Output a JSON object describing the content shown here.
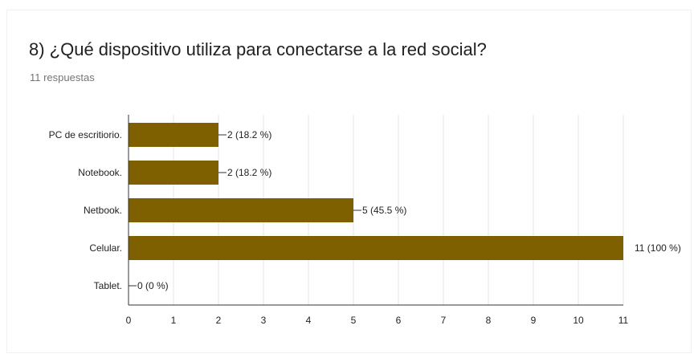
{
  "question": {
    "title": "8) ¿Qué dispositivo utiliza para conectarse a la red social?",
    "response_count": "11 respuestas"
  },
  "colors": {
    "bar": "#7f6000",
    "grid": "#e6e6e6",
    "axis": "#333333"
  },
  "chart_data": {
    "type": "bar",
    "orientation": "horizontal",
    "categories": [
      "PC de escritiorio.",
      "Notebook.",
      "Netbook.",
      "Celular.",
      "Tablet."
    ],
    "values": [
      2,
      2,
      5,
      11,
      0
    ],
    "value_labels": [
      "2 (18.2 %)",
      "2 (18.2 %)",
      "5 (45.5 %)",
      "11 (100 %)",
      "0 (0 %)"
    ],
    "xlim": [
      0,
      11
    ],
    "xticks": [
      0,
      1,
      2,
      3,
      4,
      5,
      6,
      7,
      8,
      9,
      10,
      11
    ],
    "grid": true
  }
}
